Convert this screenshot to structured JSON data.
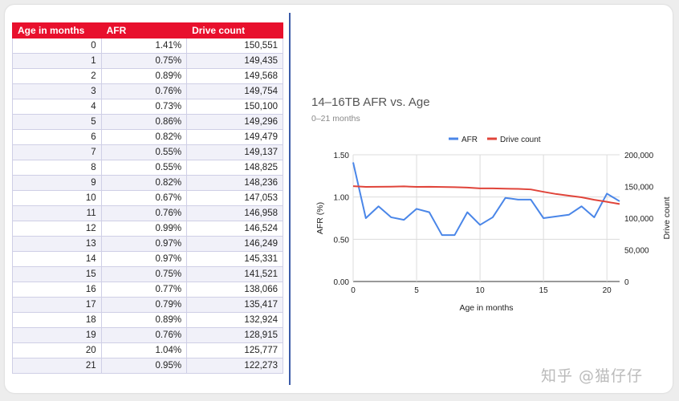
{
  "table": {
    "headers": [
      "Age in months",
      "AFR",
      "Drive count"
    ],
    "rows": [
      [
        "0",
        "1.41%",
        "150,551"
      ],
      [
        "1",
        "0.75%",
        "149,435"
      ],
      [
        "2",
        "0.89%",
        "149,568"
      ],
      [
        "3",
        "0.76%",
        "149,754"
      ],
      [
        "4",
        "0.73%",
        "150,100"
      ],
      [
        "5",
        "0.86%",
        "149,296"
      ],
      [
        "6",
        "0.82%",
        "149,479"
      ],
      [
        "7",
        "0.55%",
        "149,137"
      ],
      [
        "8",
        "0.55%",
        "148,825"
      ],
      [
        "9",
        "0.82%",
        "148,236"
      ],
      [
        "10",
        "0.67%",
        "147,053"
      ],
      [
        "11",
        "0.76%",
        "146,958"
      ],
      [
        "12",
        "0.99%",
        "146,524"
      ],
      [
        "13",
        "0.97%",
        "146,249"
      ],
      [
        "14",
        "0.97%",
        "145,331"
      ],
      [
        "15",
        "0.75%",
        "141,521"
      ],
      [
        "16",
        "0.77%",
        "138,066"
      ],
      [
        "17",
        "0.79%",
        "135,417"
      ],
      [
        "18",
        "0.89%",
        "132,924"
      ],
      [
        "19",
        "0.76%",
        "128,915"
      ],
      [
        "20",
        "1.04%",
        "125,777"
      ],
      [
        "21",
        "0.95%",
        "122,273"
      ]
    ]
  },
  "colors": {
    "header_red": "#e8102d",
    "afr_line": "#4a86e8",
    "drive_count_line": "#e0443a",
    "divider": "#3b5ba8"
  },
  "watermark": "知乎 @猫仔仔",
  "chart_data": {
    "type": "line",
    "title": "14–16TB AFR vs. Age",
    "subtitle": "0–21 months",
    "xlabel": "Age in months",
    "ylabel_left": "AFR (%)",
    "ylabel_right": "Drive count",
    "legend_position": "top",
    "grid": true,
    "x": [
      0,
      1,
      2,
      3,
      4,
      5,
      6,
      7,
      8,
      9,
      10,
      11,
      12,
      13,
      14,
      15,
      16,
      17,
      18,
      19,
      20,
      21
    ],
    "xlim": [
      0,
      21
    ],
    "x_ticks": [
      "0",
      "5",
      "10",
      "15",
      "20"
    ],
    "ylim_left": [
      0,
      1.5
    ],
    "y_ticks_left": [
      "0.00",
      "0.50",
      "1.00",
      "1.50"
    ],
    "ylim_right": [
      0,
      200000
    ],
    "y_ticks_right": [
      "0",
      "50,000",
      "100,000",
      "150,000",
      "200,000"
    ],
    "series": [
      {
        "name": "AFR",
        "axis": "left",
        "values": [
          1.41,
          0.75,
          0.89,
          0.76,
          0.73,
          0.86,
          0.82,
          0.55,
          0.55,
          0.82,
          0.67,
          0.76,
          0.99,
          0.97,
          0.97,
          0.75,
          0.77,
          0.79,
          0.89,
          0.76,
          1.04,
          0.95
        ]
      },
      {
        "name": "Drive count",
        "axis": "right",
        "values": [
          150551,
          149435,
          149568,
          149754,
          150100,
          149296,
          149479,
          149137,
          148825,
          148236,
          147053,
          146958,
          146524,
          146249,
          145331,
          141521,
          138066,
          135417,
          132924,
          128915,
          125777,
          122273
        ]
      }
    ]
  }
}
